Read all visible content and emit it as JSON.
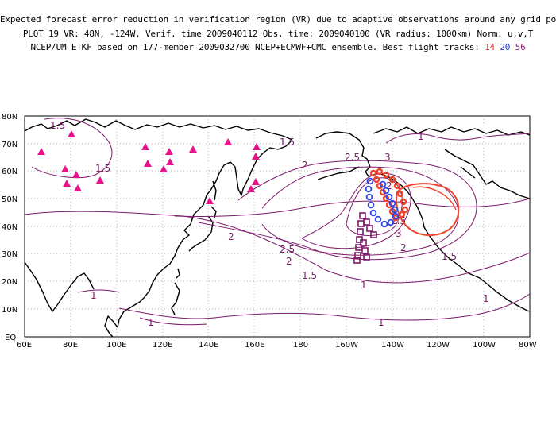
{
  "header": {
    "line1": "Expected forecast error reduction in verification region (VR) due to adaptive observations around any grid point.",
    "line2": "PLOT 19 VR: 48N, -124W, Verif. time 2009040112 Obs. time: 2009040100 (VR radius: 1000km) Norm: u,v,T",
    "line3_prefix": "NCEP/UM ETKF based on 177-member 2009032700 NCEP+ECMWF+CMC ensemble. Best flight tracks:",
    "track_a": "14",
    "track_b": "20",
    "track_c": "56"
  },
  "map": {
    "lat_labels": [
      "80N",
      "70N",
      "60N",
      "50N",
      "40N",
      "30N",
      "20N",
      "10N",
      "EQ"
    ],
    "lon_labels": [
      "60E",
      "80E",
      "100E",
      "120E",
      "140E",
      "160E",
      "180",
      "160W",
      "140W",
      "120W",
      "100W",
      "80W"
    ],
    "contour_labels": [
      "1.5",
      "1.5",
      "1.5",
      "2",
      "2.5",
      "3",
      "2",
      "2.5",
      "3",
      "2",
      "2",
      "2.5",
      "2",
      "1.5",
      "1.5",
      "1",
      "1",
      "1",
      "1",
      "1",
      "1"
    ],
    "colors": {
      "contour": "#7d1a6a",
      "track_red": "#f0442c",
      "track_blue": "#2a44e6",
      "track_purple": "#7d1a6a",
      "triangle": "#e8138a",
      "vr_circle": "#f0442c",
      "coast": "#000000",
      "grid": "#999999"
    }
  }
}
